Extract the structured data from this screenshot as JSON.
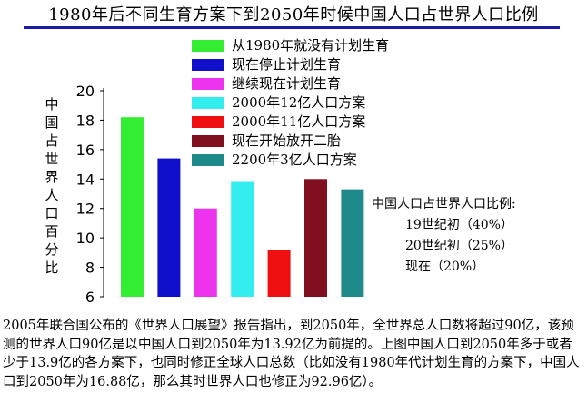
{
  "title": "1980年后不同生育方案下到2050年时候中国人口占世界人口比例",
  "chart_data": {
    "type": "bar",
    "ylabel": "中国占世界人口百分比",
    "ylim": [
      6,
      20
    ],
    "yticks": [
      6,
      8,
      10,
      12,
      14,
      16,
      18,
      20
    ],
    "series": [
      {
        "name": "从1980年就没有计划生育",
        "value": 18.2,
        "color": "#33ee33"
      },
      {
        "name": "现在停止计划生育",
        "value": 15.4,
        "color": "#1010cc"
      },
      {
        "name": "继续现在计划生育",
        "value": 12.0,
        "color": "#ee33ee"
      },
      {
        "name": "2000年12亿人口方案",
        "value": 13.8,
        "color": "#33eeee"
      },
      {
        "name": "2000年11亿人口方案",
        "value": 9.2,
        "color": "#ee1010"
      },
      {
        "name": "现在开始放开二胎",
        "value": 14.0,
        "color": "#801020"
      },
      {
        "name": "2200年3亿人口方案",
        "value": 13.3,
        "color": "#208a8a"
      }
    ],
    "grid": false,
    "legend_position": "top-center"
  },
  "side_note": {
    "heading": "中国人口占世界人口比例:",
    "items": [
      "19世纪初（40%）",
      "20世纪初（25%）",
      "现在（20%）"
    ]
  },
  "caption": "2005年联合国公布的《世界人口展望》报告指出，到2050年，全世界总人口数将超过90亿，该预测的世界人口90亿是以中国人口到2050年为13.92亿为前提的。上图中国人口到2050年多于或者少于13.9亿的各方案下，也同时修正全球人口总数（比如没有1980年代计划生育的方案下，中国人口到2050年为16.88亿，那么其时世界人口也修正为92.96亿）。"
}
